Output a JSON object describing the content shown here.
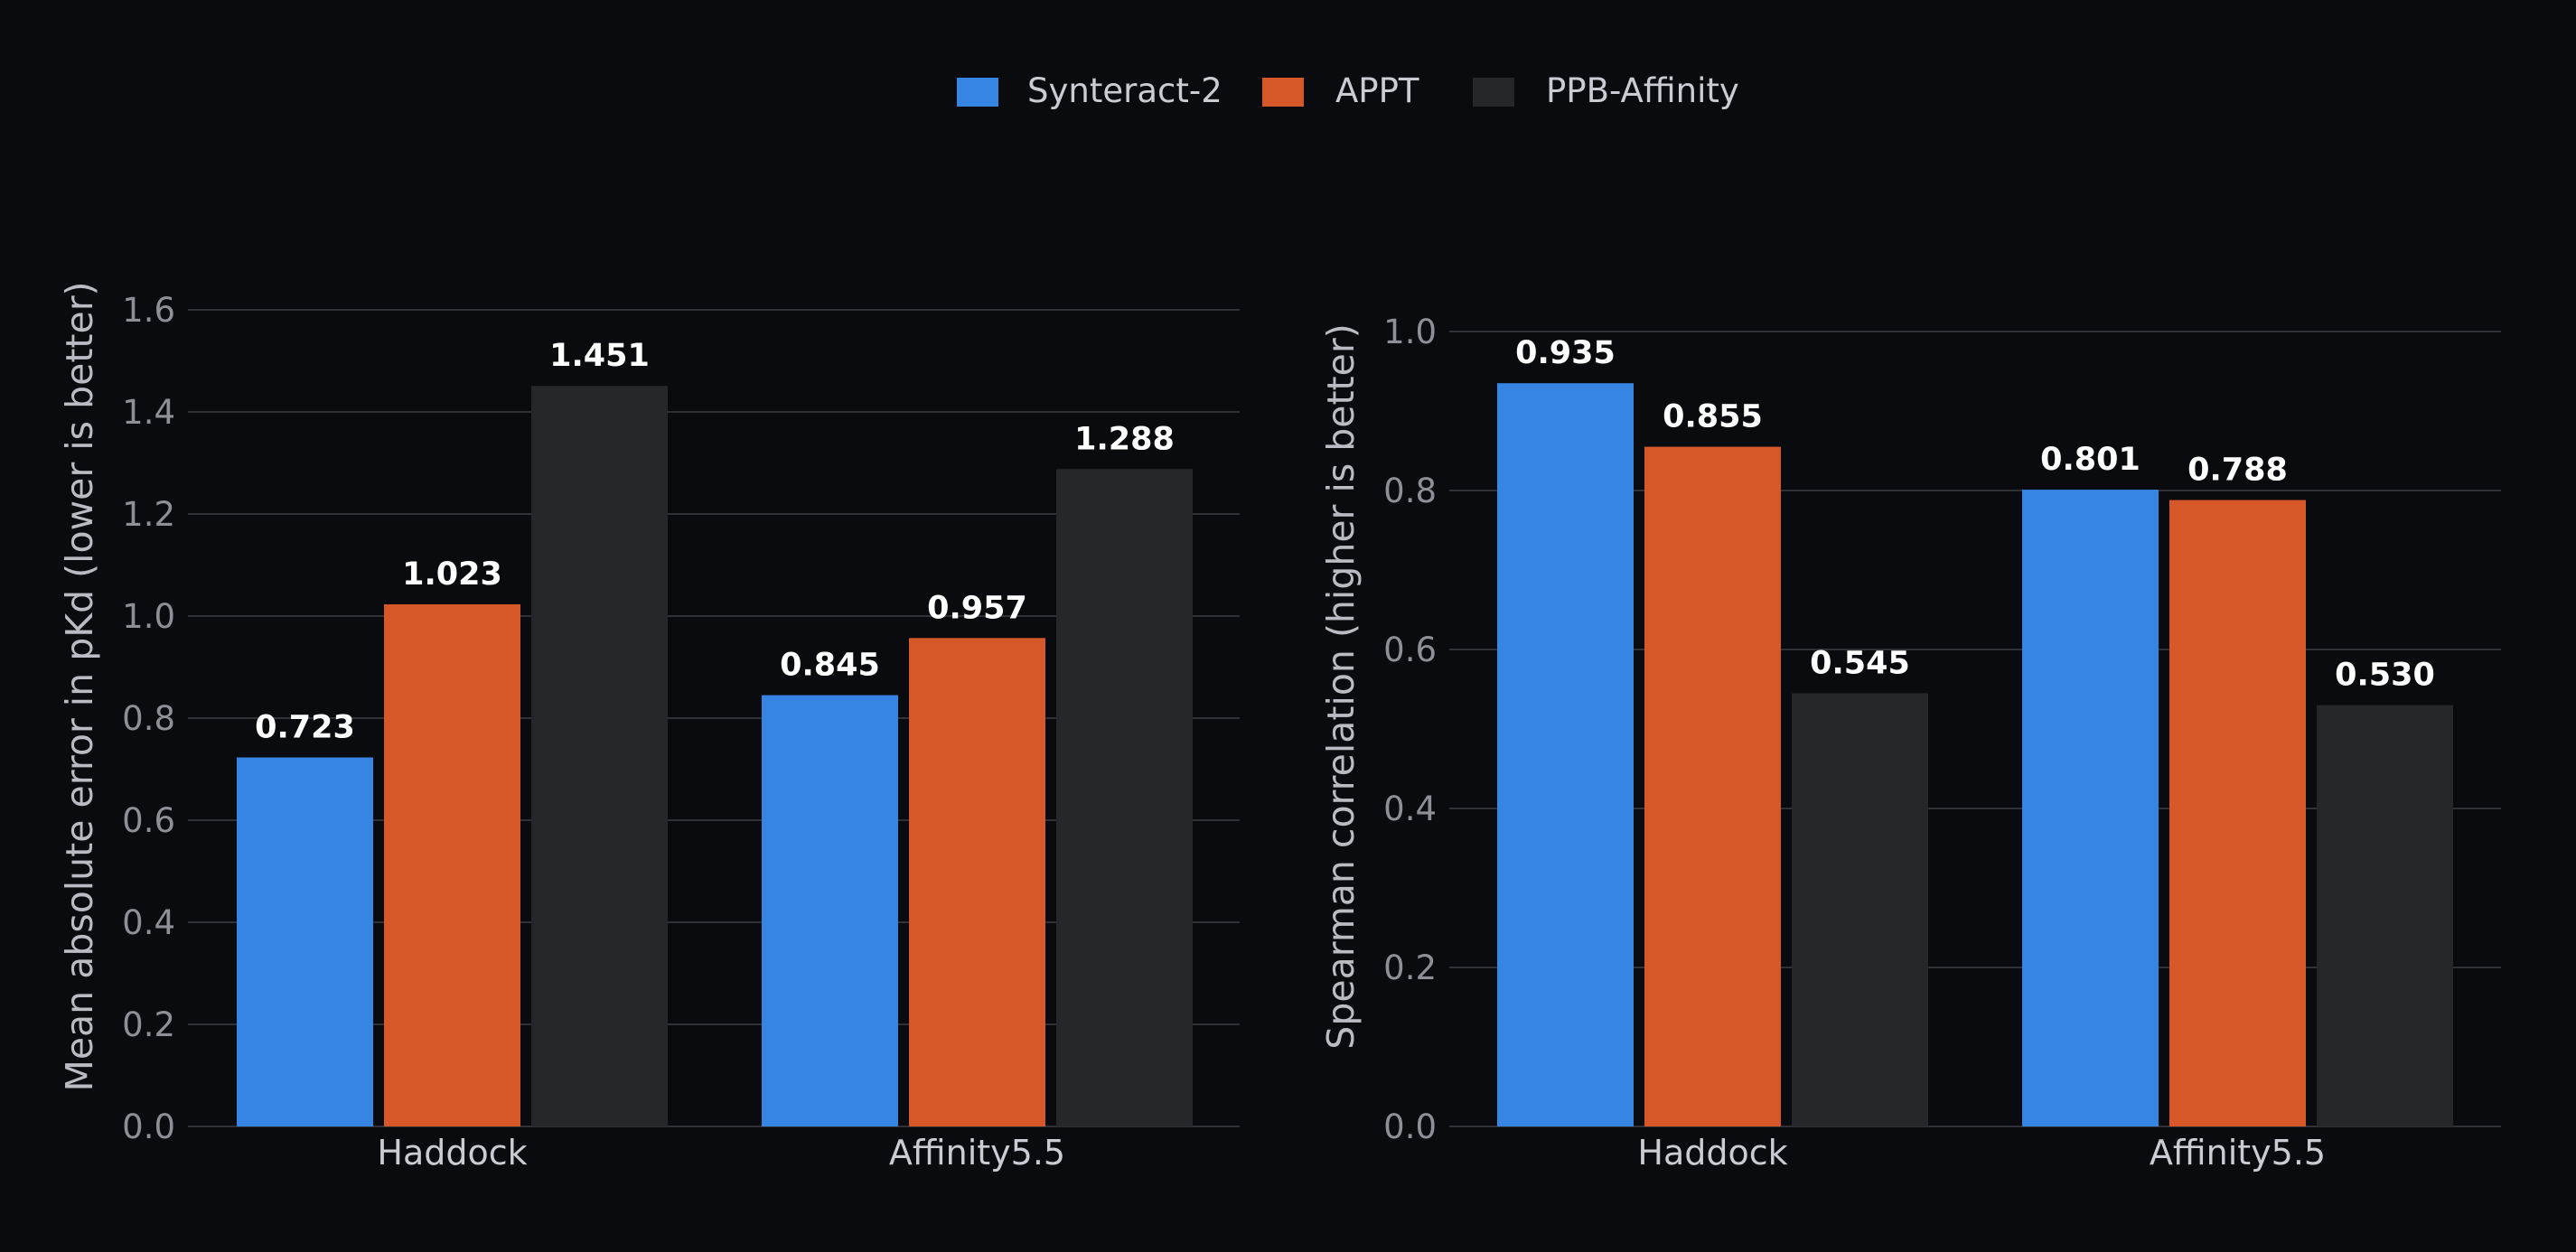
{
  "legend": {
    "placement": "top-center",
    "items": [
      {
        "label": "Synteract-2",
        "color": "#3785e3"
      },
      {
        "label": "APPT",
        "color": "#d65828"
      },
      {
        "label": "PPB-Affinity",
        "color": "#26272b"
      }
    ]
  },
  "colors": {
    "background": "#0a0b0e",
    "grid": "#2f3136",
    "tick_label": "#8d9097",
    "axis_label": "#b9bcc2",
    "category_label": "#c9ccd2",
    "value_label": "#ffffff"
  },
  "chart_data": [
    {
      "type": "bar",
      "title": "",
      "xlabel": "",
      "ylabel": "Mean absolute error in pKd (lower is better)",
      "categories": [
        "Haddock",
        "Affinity5.5"
      ],
      "ylim": [
        0,
        1.6
      ],
      "yticks": [
        "0.0",
        "0.2",
        "0.4",
        "0.6",
        "0.8",
        "1.0",
        "1.2",
        "1.4",
        "1.6"
      ],
      "grid": true,
      "series": [
        {
          "name": "Synteract-2",
          "values": [
            0.723,
            0.845
          ],
          "labels": [
            "0.723",
            "0.845"
          ]
        },
        {
          "name": "APPT",
          "values": [
            1.023,
            0.957
          ],
          "labels": [
            "1.023",
            "0.957"
          ]
        },
        {
          "name": "PPB-Affinity",
          "values": [
            1.451,
            1.288
          ],
          "labels": [
            "1.451",
            "1.288"
          ]
        }
      ]
    },
    {
      "type": "bar",
      "title": "",
      "xlabel": "",
      "ylabel": "Spearman correlation (higher is better)",
      "categories": [
        "Haddock",
        "Affinity5.5"
      ],
      "ylim": [
        0,
        1.0
      ],
      "yticks": [
        "0.0",
        "0.2",
        "0.4",
        "0.6",
        "0.8",
        "1.0"
      ],
      "grid": true,
      "series": [
        {
          "name": "Synteract-2",
          "values": [
            0.935,
            0.801
          ],
          "labels": [
            "0.935",
            "0.801"
          ]
        },
        {
          "name": "APPT",
          "values": [
            0.855,
            0.788
          ],
          "labels": [
            "0.855",
            "0.788"
          ]
        },
        {
          "name": "PPB-Affinity",
          "values": [
            0.545,
            0.53
          ],
          "labels": [
            "0.545",
            "0.530"
          ]
        }
      ]
    }
  ]
}
